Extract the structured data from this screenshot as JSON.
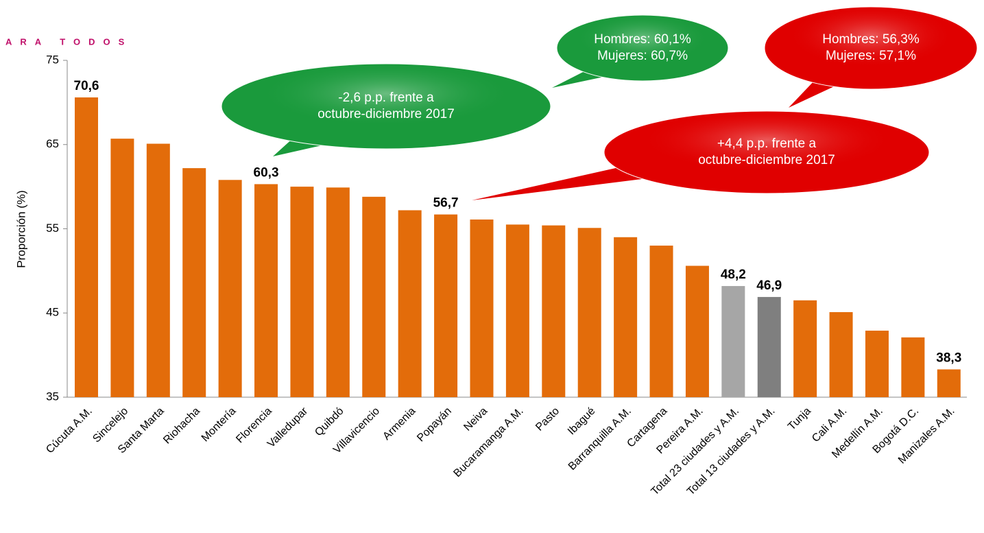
{
  "chart_data": {
    "type": "bar",
    "brand": "ARA TODOS",
    "y_label": "Proporción (%)",
    "categories": [
      "Cúcuta A.M.",
      "Sincelejo",
      "Santa Marta",
      "Riohacha",
      "Montería",
      "Florencia",
      "Valledupar",
      "Quibdó",
      "Villavicencio",
      "Armenia",
      "Popayán",
      "Neiva",
      "Bucaramanga A.M.",
      "Pasto",
      "Ibagué",
      "Barranquilla A.M.",
      "Cartagena",
      "Pereira A.M.",
      "Total 23 ciudades y A.M.",
      "Total 13 ciudades y A.M.",
      "Tunja",
      "Cali A.M.",
      "Medellín A.M.",
      "Bogotá D.C.",
      "Manizales A.M."
    ],
    "values": [
      70.6,
      65.7,
      65.1,
      62.2,
      60.8,
      60.3,
      60.0,
      59.9,
      58.8,
      57.2,
      56.7,
      56.1,
      55.5,
      55.4,
      55.1,
      54.0,
      53.0,
      50.6,
      48.2,
      46.9,
      46.5,
      45.1,
      42.9,
      42.1,
      38.3
    ],
    "value_labels": [
      "70,6",
      null,
      null,
      null,
      null,
      "60,3",
      null,
      null,
      null,
      null,
      "56,7",
      null,
      null,
      null,
      null,
      null,
      null,
      null,
      "48,2",
      "46,9",
      null,
      null,
      null,
      null,
      "38,3"
    ],
    "colors": [
      "#e36c0a",
      "#e36c0a",
      "#e36c0a",
      "#e36c0a",
      "#e36c0a",
      "#e36c0a",
      "#e36c0a",
      "#e36c0a",
      "#e36c0a",
      "#e36c0a",
      "#e36c0a",
      "#e36c0a",
      "#e36c0a",
      "#e36c0a",
      "#e36c0a",
      "#e36c0a",
      "#e36c0a",
      "#e36c0a",
      "#a6a6a6",
      "#7f7f7f",
      "#e36c0a",
      "#e36c0a",
      "#e36c0a",
      "#e36c0a",
      "#e36c0a"
    ],
    "ylim": [
      35,
      75
    ],
    "yticks": [
      35,
      45,
      55,
      65,
      75
    ],
    "annotations": [
      {
        "lines": [
          "-2,6 p.p. frente a",
          "octubre-diciembre 2017"
        ],
        "color": "#1a9a3c"
      },
      {
        "lines": [
          "Hombres: 60,1%",
          "Mujeres: 60,7%"
        ],
        "color": "#1a9a3c"
      },
      {
        "lines": [
          "Hombres: 56,3%",
          "Mujeres: 57,1%"
        ],
        "color": "#e00000"
      },
      {
        "lines": [
          "+4,4 p.p. frente a",
          "octubre-diciembre 2017"
        ],
        "color": "#e00000"
      }
    ]
  }
}
